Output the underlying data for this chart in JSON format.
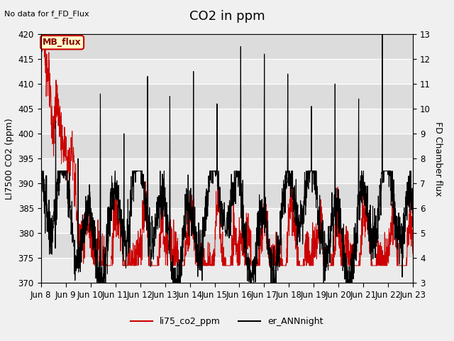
{
  "title": "CO2 in ppm",
  "top_left_text": "No data for f_FD_Flux",
  "ylabel_left": "LI7500 CO2 (ppm)",
  "ylabel_right": "FD Chamber flux",
  "ylim_left": [
    370,
    420
  ],
  "ylim_right": [
    3.0,
    13.0
  ],
  "yticks_left": [
    370,
    375,
    380,
    385,
    390,
    395,
    400,
    405,
    410,
    415,
    420
  ],
  "yticks_right": [
    3.0,
    4.0,
    5.0,
    6.0,
    7.0,
    8.0,
    9.0,
    10.0,
    11.0,
    12.0,
    13.0
  ],
  "xtick_labels": [
    "Jun 8",
    "Jun 9",
    "Jun 10",
    "Jun 11",
    "Jun 12",
    "Jun 13",
    "Jun 14",
    "Jun 15",
    "Jun 16",
    "Jun 17",
    "Jun 18",
    "Jun 19",
    "Jun 20",
    "Jun 21",
    "Jun 22",
    "Jun 23"
  ],
  "legend_labels": [
    "li75_co2_ppm",
    "er_ANNnight"
  ],
  "legend_colors": [
    "#cc0000",
    "#000000"
  ],
  "line_color_red": "#cc0000",
  "line_color_black": "#000000",
  "fig_bg_color": "#f0f0f0",
  "plot_bg_color": "#f0f0f0",
  "band_colors": [
    "#e8e8e8",
    "#d8d8d8"
  ],
  "mb_flux_label": "MB_flux",
  "mb_flux_bg": "#ffffcc",
  "mb_flux_border": "#cc0000",
  "title_fontsize": 13,
  "label_fontsize": 9,
  "tick_fontsize": 8.5
}
